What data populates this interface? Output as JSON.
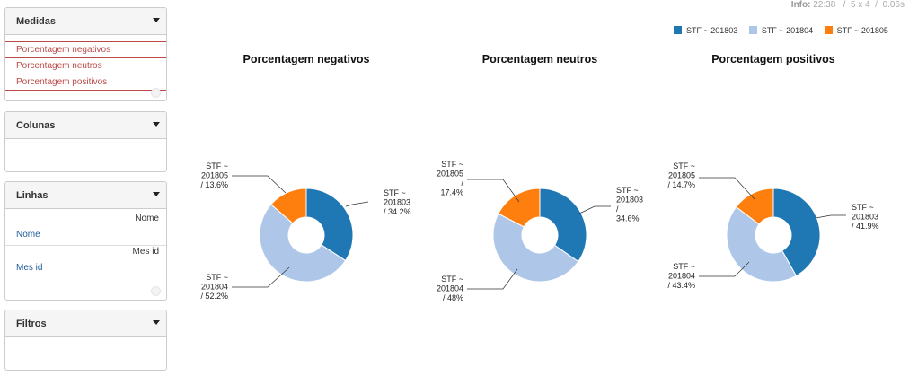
{
  "info": {
    "label": "Info:",
    "time": "22:38",
    "dims": "5 x 4",
    "duration": "0.06s"
  },
  "sidebar": {
    "medidas": {
      "title": "Medidas",
      "items": [
        "Porcentagem negativos",
        "Porcentagem neutros",
        "Porcentagem positivos"
      ]
    },
    "colunas": {
      "title": "Colunas"
    },
    "linhas": {
      "title": "Linhas",
      "hierarchies": [
        {
          "name": "Nome",
          "level": "Nome"
        },
        {
          "name": "Mes id",
          "level": "Mes id"
        }
      ]
    },
    "filtros": {
      "title": "Filtros"
    }
  },
  "colors": {
    "STF ~ 201803": "#1f77b4",
    "STF ~ 201804": "#aec7e8",
    "STF ~ 201805": "#ff7f0e"
  },
  "legend": [
    "STF ~ 201803",
    "STF ~ 201804",
    "STF ~ 201805"
  ],
  "chart_data": [
    {
      "type": "pie",
      "title": "Porcentagem negativos",
      "slices": [
        {
          "name": "STF ~ 201803",
          "value": 34.2,
          "label": [
            "STF ~",
            "201803",
            "/ 34.2%"
          ]
        },
        {
          "name": "STF ~ 201804",
          "value": 52.2,
          "label": [
            "STF ~",
            "201804",
            "/ 52.2%"
          ]
        },
        {
          "name": "STF ~ 201805",
          "value": 13.6,
          "label": [
            "STF ~",
            "201805",
            "/ 13.6%"
          ]
        }
      ]
    },
    {
      "type": "pie",
      "title": "Porcentagem neutros",
      "slices": [
        {
          "name": "STF ~ 201803",
          "value": 34.6,
          "label": [
            "STF ~",
            "201803",
            "/",
            "34.6%"
          ]
        },
        {
          "name": "STF ~ 201804",
          "value": 48,
          "label": [
            "STF ~",
            "201804",
            "/ 48%"
          ]
        },
        {
          "name": "STF ~ 201805",
          "value": 17.4,
          "label": [
            "STF ~",
            "201805",
            "/",
            "17.4%"
          ]
        }
      ]
    },
    {
      "type": "pie",
      "title": "Porcentagem positivos",
      "slices": [
        {
          "name": "STF ~ 201803",
          "value": 41.9,
          "label": [
            "STF ~",
            "201803",
            "/ 41.9%"
          ]
        },
        {
          "name": "STF ~ 201804",
          "value": 43.4,
          "label": [
            "STF ~",
            "201804",
            "/ 43.4%"
          ]
        },
        {
          "name": "STF ~ 201805",
          "value": 14.7,
          "label": [
            "STF ~",
            "201805",
            "/ 14.7%"
          ]
        }
      ]
    }
  ]
}
